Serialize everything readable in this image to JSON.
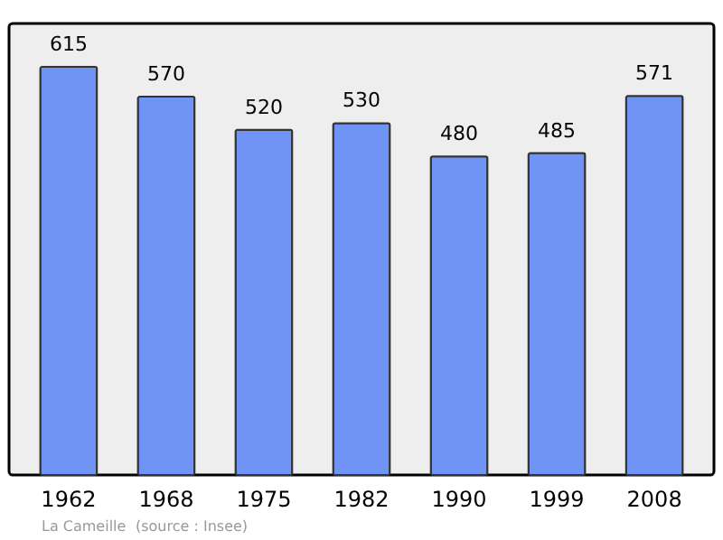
{
  "chart_data": {
    "type": "bar",
    "categories": [
      "1962",
      "1968",
      "1975",
      "1982",
      "1990",
      "1999",
      "2008"
    ],
    "values": [
      615,
      570,
      520,
      530,
      480,
      485,
      571
    ],
    "color": "#6f94f6",
    "data_labels": true,
    "grid": false,
    "annotations": [
      "La Cameille",
      "(source : Insee)"
    ]
  }
}
